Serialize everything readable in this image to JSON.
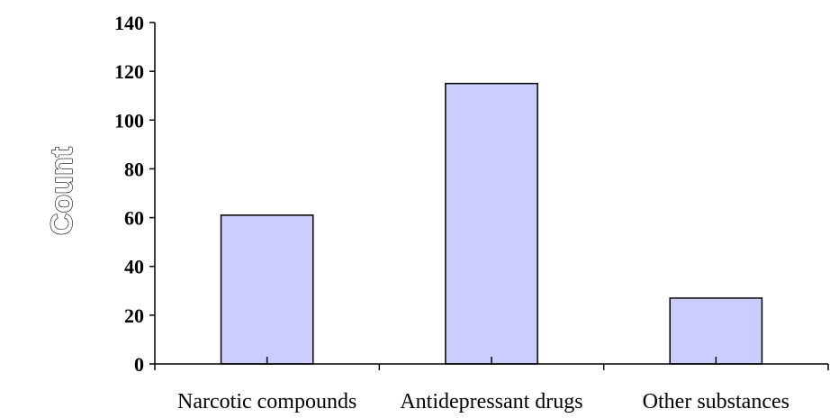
{
  "chart_data": {
    "type": "bar",
    "categories": [
      "Narcotic compounds",
      "Antidepressant drugs",
      "Other substances"
    ],
    "values": [
      61,
      115,
      27
    ],
    "title": "",
    "xlabel": "",
    "ylabel": "Count",
    "ylim": [
      0,
      140
    ],
    "yticks": [
      "0",
      "20",
      "40",
      "60",
      "80",
      "100",
      "120",
      "140"
    ],
    "grid": false,
    "legend": "none",
    "colors": {
      "bar_fill": "#ccccff",
      "bar_stroke": "#000000",
      "axis": "#000000"
    }
  }
}
